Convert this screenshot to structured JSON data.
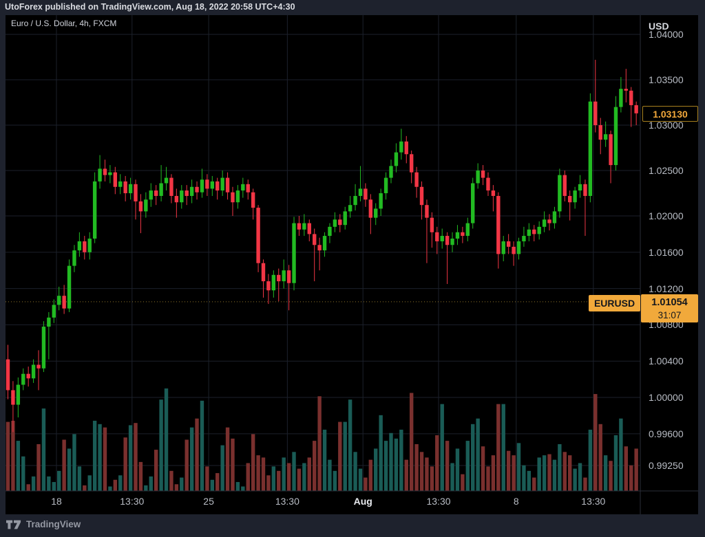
{
  "attribution": {
    "text": "UtoForex published on TradingView.com, Aug 18, 2022 20:58 UTC+4:30"
  },
  "chart_header": {
    "symbol_title": "Euro / U.S. Dollar, 4h, FXCM"
  },
  "price_axis": {
    "currency_label": "USD",
    "last_price_label": "1.03130",
    "symbol_badge": "EURUSD",
    "series_price_label": "1.01054",
    "countdown": "31:07"
  },
  "footer": {
    "brand": "TradingView"
  },
  "colors": {
    "outer_bg": "#1e222d",
    "chart_bg": "#000000",
    "grid": "#1c212b",
    "up": "#22bb22",
    "down": "#f23645",
    "vol_up": "#1a5c56",
    "vol_down": "#7a302e",
    "accent_yellow": "#f1a93b",
    "price_line": "#93772a",
    "axis_text": "#b9bdc5",
    "separator": "#2a2e39"
  },
  "chart_data": {
    "type": "candlestick",
    "symbol": "EURUSD",
    "timeframe": "4h",
    "exchange": "FXCM",
    "ylim": [
      0.9897,
      1.042121
    ],
    "grid": true,
    "price_line_value": 1.01054,
    "last_price": 1.0313,
    "volume_relative": true,
    "price_ticks": [
      1.04,
      1.035,
      1.03,
      1.025,
      1.02,
      1.016,
      1.012,
      1.008,
      1.004,
      1.0,
      0.996,
      0.9925
    ],
    "time_ticks": [
      {
        "label": "18",
        "i": 9.5,
        "major": false
      },
      {
        "label": "13:30",
        "i": 24.3,
        "major": false
      },
      {
        "label": "25",
        "i": 39.3,
        "major": false
      },
      {
        "label": "13:30",
        "i": 54.7,
        "major": false
      },
      {
        "label": "Aug",
        "i": 69.5,
        "major": true
      },
      {
        "label": "13:30",
        "i": 84.3,
        "major": false
      },
      {
        "label": "8",
        "i": 99.5,
        "major": false
      },
      {
        "label": "13:30",
        "i": 114.6,
        "major": false
      }
    ],
    "candles": [
      [
        1.0042,
        1.0058,
        0.9998,
        1.0008,
        0.62
      ],
      [
        1.0008,
        1.0018,
        0.9962,
        0.9992,
        0.63
      ],
      [
        0.9992,
        1.0022,
        0.9978,
        1.0014,
        0.45
      ],
      [
        1.0014,
        1.0032,
        1.0008,
        1.0026,
        0.31
      ],
      [
        1.0026,
        1.0034,
        1.0012,
        1.0021,
        0.06
      ],
      [
        1.0021,
        1.0042,
        1.0016,
        1.0036,
        0.13
      ],
      [
        1.0036,
        1.0052,
        1.0008,
        1.0032,
        0.42
      ],
      [
        1.0032,
        1.0084,
        1.0028,
        1.0078,
        0.74
      ],
      [
        1.0078,
        1.0094,
        1.0042,
        1.0088,
        0.13
      ],
      [
        1.0088,
        1.0108,
        1.0082,
        1.0102,
        0.08
      ],
      [
        1.0102,
        1.0122,
        1.0096,
        1.0112,
        0.18
      ],
      [
        1.0112,
        1.0124,
        1.0092,
        1.0098,
        0.46
      ],
      [
        1.0098,
        1.0152,
        1.0094,
        1.0145,
        0.38
      ],
      [
        1.0145,
        1.0168,
        1.0138,
        1.0162,
        0.51
      ],
      [
        1.0162,
        1.0182,
        1.0155,
        1.0172,
        0.22
      ],
      [
        1.0172,
        1.0178,
        1.0152,
        1.016,
        0.05
      ],
      [
        1.016,
        1.0182,
        1.0152,
        1.0175,
        0.14
      ],
      [
        1.0175,
        1.0248,
        1.017,
        1.0238,
        0.63
      ],
      [
        1.0238,
        1.0267,
        1.023,
        1.0252,
        0.6
      ],
      [
        1.0252,
        1.0262,
        1.0238,
        1.0245,
        0.57
      ],
      [
        1.0245,
        1.0256,
        1.0236,
        1.0248,
        0.04
      ],
      [
        1.0248,
        1.0254,
        1.0224,
        1.0232,
        0.1
      ],
      [
        1.0232,
        1.0246,
        1.0224,
        1.0238,
        0.14
      ],
      [
        1.0238,
        1.0244,
        1.0216,
        1.0225,
        0.48
      ],
      [
        1.0225,
        1.0242,
        1.0218,
        1.0235,
        0.59
      ],
      [
        1.0235,
        1.024,
        1.0196,
        1.0216,
        0.61
      ],
      [
        1.0216,
        1.0224,
        1.0181,
        1.0205,
        0.26
      ],
      [
        1.0205,
        1.0226,
        1.0198,
        1.0218,
        0.05
      ],
      [
        1.0218,
        1.0236,
        1.021,
        1.0228,
        0.13
      ],
      [
        1.0228,
        1.0234,
        1.0212,
        1.0222,
        0.37
      ],
      [
        1.0222,
        1.0256,
        1.0216,
        1.0236,
        0.82
      ],
      [
        1.0236,
        1.0254,
        1.0228,
        1.0242,
        0.92
      ],
      [
        1.0242,
        1.0246,
        1.0214,
        1.0222,
        0.18
      ],
      [
        1.0222,
        1.023,
        1.0198,
        1.0215,
        0.06
      ],
      [
        1.0215,
        1.0234,
        1.0208,
        1.0228,
        0.12
      ],
      [
        1.0228,
        1.0234,
        1.0212,
        1.0222,
        0.46
      ],
      [
        1.0222,
        1.024,
        1.0214,
        1.0232,
        0.57
      ],
      [
        1.0232,
        1.0238,
        1.0218,
        1.0226,
        0.65
      ],
      [
        1.0226,
        1.0252,
        1.022,
        1.024,
        0.81
      ],
      [
        1.024,
        1.0246,
        1.0222,
        1.023,
        0.22
      ],
      [
        1.023,
        1.0244,
        1.0222,
        1.0238,
        0.1
      ],
      [
        1.0238,
        1.0242,
        1.0218,
        1.0228,
        0.16
      ],
      [
        1.0228,
        1.025,
        1.0222,
        1.0242,
        0.41
      ],
      [
        1.0242,
        1.0248,
        1.0218,
        1.0226,
        0.57
      ],
      [
        1.0226,
        1.0232,
        1.02,
        1.0215,
        0.47
      ],
      [
        1.0215,
        1.0234,
        1.0208,
        1.0228,
        0.08
      ],
      [
        1.0228,
        1.0242,
        1.022,
        1.0235,
        0.04
      ],
      [
        1.0235,
        1.024,
        1.0218,
        1.0226,
        0.25
      ],
      [
        1.0226,
        1.023,
        1.0196,
        1.0209,
        0.51
      ],
      [
        1.0209,
        1.0212,
        1.0138,
        1.0148,
        0.32
      ],
      [
        1.0148,
        1.0152,
        1.011,
        1.0128,
        0.3
      ],
      [
        1.0128,
        1.0136,
        1.0103,
        1.0118,
        0.14
      ],
      [
        1.0118,
        1.014,
        1.011,
        1.0135,
        0.22
      ],
      [
        1.0135,
        1.0142,
        1.0106,
        1.0128,
        0.18
      ],
      [
        1.0128,
        1.0152,
        1.012,
        1.014,
        0.3
      ],
      [
        1.014,
        1.0146,
        1.0096,
        1.0126,
        0.25
      ],
      [
        1.0126,
        1.0199,
        1.0118,
        1.0192,
        0.35
      ],
      [
        1.0192,
        1.02,
        1.0178,
        1.0185,
        0.2
      ],
      [
        1.0185,
        1.0202,
        1.0178,
        1.0192,
        0.25
      ],
      [
        1.0192,
        1.0196,
        1.0172,
        1.018,
        0.3
      ],
      [
        1.018,
        1.0186,
        1.0128,
        1.0168,
        0.45
      ],
      [
        1.0168,
        1.0176,
        1.014,
        1.0162,
        0.85
      ],
      [
        1.0162,
        1.0182,
        1.0155,
        1.0178,
        0.55
      ],
      [
        1.0178,
        1.0192,
        1.017,
        1.0188,
        0.28
      ],
      [
        1.0188,
        1.0204,
        1.0182,
        1.0196,
        0.18
      ],
      [
        1.0196,
        1.0202,
        1.0182,
        1.019,
        0.62
      ],
      [
        1.019,
        1.021,
        1.0185,
        1.0205,
        0.62
      ],
      [
        1.0205,
        1.0222,
        1.0198,
        1.0212,
        0.82
      ],
      [
        1.0212,
        1.0235,
        1.0206,
        1.0222,
        0.35
      ],
      [
        1.0222,
        1.0255,
        1.0216,
        1.023,
        0.2
      ],
      [
        1.023,
        1.0236,
        1.021,
        1.0218,
        0.12
      ],
      [
        1.0218,
        1.0224,
        1.018,
        1.0198,
        0.28
      ],
      [
        1.0198,
        1.0214,
        1.019,
        1.0208,
        0.38
      ],
      [
        1.0208,
        1.023,
        1.02,
        1.0225,
        0.68
      ],
      [
        1.0225,
        1.0248,
        1.0218,
        1.0242,
        0.45
      ],
      [
        1.0242,
        1.0262,
        1.0236,
        1.0255,
        0.52
      ],
      [
        1.0255,
        1.028,
        1.0248,
        1.027,
        0.47
      ],
      [
        1.027,
        1.0296,
        1.0262,
        1.0282,
        0.55
      ],
      [
        1.0282,
        1.0288,
        1.0258,
        1.0268,
        0.28
      ],
      [
        1.0268,
        1.0272,
        1.0236,
        1.0248,
        0.88
      ],
      [
        1.0248,
        1.0254,
        1.022,
        1.0232,
        0.42
      ],
      [
        1.0232,
        1.0238,
        1.0196,
        1.0212,
        0.35
      ],
      [
        1.0212,
        1.0218,
        1.0148,
        1.0198,
        0.3
      ],
      [
        1.0198,
        1.0204,
        1.0165,
        1.0182,
        0.22
      ],
      [
        1.0182,
        1.0188,
        1.0158,
        1.0172,
        0.5
      ],
      [
        1.0172,
        1.0186,
        1.0164,
        1.0178,
        0.78
      ],
      [
        1.0178,
        1.0182,
        1.0125,
        1.0168,
        0.45
      ],
      [
        1.0168,
        1.0182,
        1.016,
        1.0175,
        0.25
      ],
      [
        1.0175,
        1.019,
        1.0168,
        1.0182,
        0.38
      ],
      [
        1.0182,
        1.0188,
        1.017,
        1.0178,
        0.15
      ],
      [
        1.0178,
        1.0198,
        1.0172,
        1.0192,
        0.45
      ],
      [
        1.0192,
        1.0242,
        1.0186,
        1.0236,
        0.6
      ],
      [
        1.0236,
        1.0258,
        1.023,
        1.025,
        0.65
      ],
      [
        1.025,
        1.0256,
        1.0234,
        1.0242,
        0.4
      ],
      [
        1.0242,
        1.0248,
        1.0222,
        1.0228,
        0.22
      ],
      [
        1.0228,
        1.0234,
        1.0205,
        1.0222,
        0.32
      ],
      [
        1.0222,
        1.0226,
        1.0142,
        1.0158,
        0.78
      ],
      [
        1.0158,
        1.0178,
        1.015,
        1.0172,
        0.78
      ],
      [
        1.0172,
        1.018,
        1.0158,
        1.0166,
        0.36
      ],
      [
        1.0166,
        1.0172,
        1.0145,
        1.0158,
        0.32
      ],
      [
        1.0158,
        1.0176,
        1.0152,
        1.0172,
        0.43
      ],
      [
        1.0172,
        1.0188,
        1.0166,
        1.0178,
        0.23
      ],
      [
        1.0178,
        1.0192,
        1.0172,
        1.0185,
        0.18
      ],
      [
        1.0185,
        1.019,
        1.0172,
        1.018,
        0.12
      ],
      [
        1.018,
        1.0194,
        1.0174,
        1.0188,
        0.3
      ],
      [
        1.0188,
        1.0205,
        1.0182,
        1.0196,
        0.32
      ],
      [
        1.0196,
        1.0202,
        1.0184,
        1.0192,
        0.33
      ],
      [
        1.0192,
        1.021,
        1.0186,
        1.0205,
        0.28
      ],
      [
        1.0205,
        1.0252,
        1.0198,
        1.0245,
        0.42
      ],
      [
        1.0245,
        1.025,
        1.0216,
        1.0222,
        0.35
      ],
      [
        1.0222,
        1.0228,
        1.0195,
        1.0215,
        0.32
      ],
      [
        1.0215,
        1.0232,
        1.0208,
        1.0228,
        0.2
      ],
      [
        1.0228,
        1.0245,
        1.022,
        1.0235,
        0.25
      ],
      [
        1.0235,
        1.024,
        1.0178,
        1.0222,
        0.12
      ],
      [
        1.0222,
        1.0335,
        1.0215,
        1.0326,
        0.55
      ],
      [
        1.0326,
        1.0372,
        1.0292,
        1.03,
        0.87
      ],
      [
        1.03,
        1.0308,
        1.0268,
        1.0284,
        0.6
      ],
      [
        1.0284,
        1.0304,
        1.0276,
        1.029,
        0.32
      ],
      [
        1.029,
        1.0294,
        1.0236,
        1.0256,
        0.27
      ],
      [
        1.0256,
        1.0332,
        1.025,
        1.032,
        0.5
      ],
      [
        1.032,
        1.0353,
        1.0314,
        1.034,
        0.65
      ],
      [
        1.034,
        1.0362,
        1.0325,
        1.0338,
        0.4
      ],
      [
        1.0338,
        1.0342,
        1.0298,
        1.0322,
        0.23
      ],
      [
        1.0322,
        1.0326,
        1.03,
        1.0313,
        0.38
      ]
    ]
  }
}
